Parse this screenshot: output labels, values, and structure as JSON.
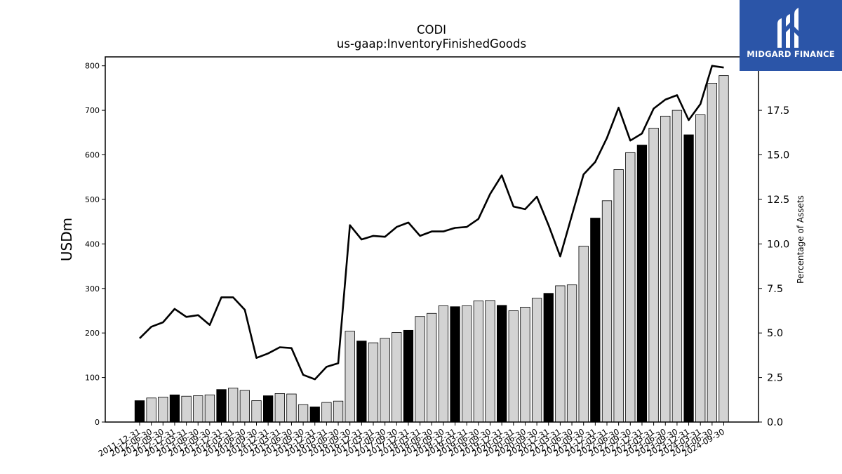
{
  "chart_data": {
    "type": "bar+line",
    "title": "CODI",
    "subtitle": "us-gaap:InventoryFinishedGoods",
    "ylabel": "USDm",
    "y2label": "Percentage of Assets",
    "ylim": [
      0,
      820
    ],
    "y2lim": [
      0,
      20.5
    ],
    "yticks": [
      "0",
      "100",
      "200",
      "300",
      "400",
      "500",
      "600",
      "700",
      "800"
    ],
    "y2ticks": [
      "0.0",
      "2.5",
      "5.0",
      "7.5",
      "10.0",
      "12.5",
      "15.0",
      "17.5",
      "20.0"
    ],
    "categories": [
      "2011-12-31",
      "2012-06-30",
      "2012-09-30",
      "2012-12-31",
      "2013-03-31",
      "2013-06-30",
      "2013-09-30",
      "2013-12-31",
      "2014-03-31",
      "2014-06-30",
      "2014-09-30",
      "2014-12-31",
      "2015-03-31",
      "2015-06-30",
      "2015-09-30",
      "2015-12-31",
      "2016-03-31",
      "2016-06-30",
      "2016-09-30",
      "2016-12-31",
      "2017-03-31",
      "2017-06-30",
      "2017-09-30",
      "2017-12-31",
      "2018-03-31",
      "2018-06-30",
      "2018-09-30",
      "2018-12-31",
      "2019-03-31",
      "2019-06-30",
      "2019-09-30",
      "2019-12-31",
      "2020-03-31",
      "2020-06-30",
      "2020-09-30",
      "2020-12-31",
      "2021-03-31",
      "2021-06-30",
      "2021-09-30",
      "2021-12-31",
      "2022-03-31",
      "2022-06-30",
      "2022-09-30",
      "2022-12-31",
      "2023-03-31",
      "2023-06-30",
      "2023-09-30",
      "2023-12-31",
      "2024-03-31",
      "2024-06-30",
      "2024-09-30"
    ],
    "series": [
      {
        "kind": "bar",
        "values": [
          48,
          54,
          56,
          61,
          58,
          59,
          61,
          73,
          76,
          71,
          48,
          59,
          64,
          63,
          39,
          34,
          44,
          47,
          204,
          182,
          178,
          188,
          201,
          206,
          237,
          244,
          261,
          259,
          261,
          272,
          273,
          262,
          250,
          258,
          278,
          289,
          306,
          308,
          395,
          458,
          497,
          567,
          605,
          622,
          660,
          687,
          700,
          645,
          690,
          761,
          778
        ],
        "fill_colors": [
          "#000000",
          "#d3d3d3",
          "#d3d3d3",
          "#000000",
          "#d3d3d3",
          "#d3d3d3",
          "#d3d3d3",
          "#000000",
          "#d3d3d3",
          "#d3d3d3",
          "#d3d3d3",
          "#000000",
          "#d3d3d3",
          "#d3d3d3",
          "#d3d3d3",
          "#000000",
          "#d3d3d3",
          "#d3d3d3",
          "#d3d3d3",
          "#000000",
          "#d3d3d3",
          "#d3d3d3",
          "#d3d3d3",
          "#000000",
          "#d3d3d3",
          "#d3d3d3",
          "#d3d3d3",
          "#000000",
          "#d3d3d3",
          "#d3d3d3",
          "#d3d3d3",
          "#000000",
          "#d3d3d3",
          "#d3d3d3",
          "#d3d3d3",
          "#000000",
          "#d3d3d3",
          "#d3d3d3",
          "#d3d3d3",
          "#000000",
          "#d3d3d3",
          "#d3d3d3",
          "#d3d3d3",
          "#000000",
          "#d3d3d3",
          "#d3d3d3",
          "#d3d3d3",
          "#000000",
          "#d3d3d3",
          "#d3d3d3",
          "#d3d3d3"
        ]
      },
      {
        "kind": "line",
        "axis": "right",
        "values": [
          4.7,
          5.35,
          5.6,
          6.35,
          5.9,
          6.0,
          5.45,
          7.0,
          7.0,
          6.3,
          3.6,
          3.85,
          4.2,
          4.15,
          2.65,
          2.4,
          3.1,
          3.3,
          11.05,
          10.25,
          10.45,
          10.4,
          10.95,
          11.2,
          10.45,
          10.7,
          10.7,
          10.9,
          10.95,
          11.4,
          12.8,
          13.85,
          12.1,
          11.95,
          12.65,
          11.05,
          9.3,
          11.6,
          13.9,
          14.6,
          15.95,
          17.65,
          15.8,
          16.2,
          17.6,
          18.1,
          18.35,
          16.95,
          17.85,
          20.0,
          19.9
        ]
      }
    ],
    "grid": false,
    "legend": "none"
  },
  "logo": {
    "text": "MIDGARD FINANCE",
    "color": "#2b55a8"
  }
}
